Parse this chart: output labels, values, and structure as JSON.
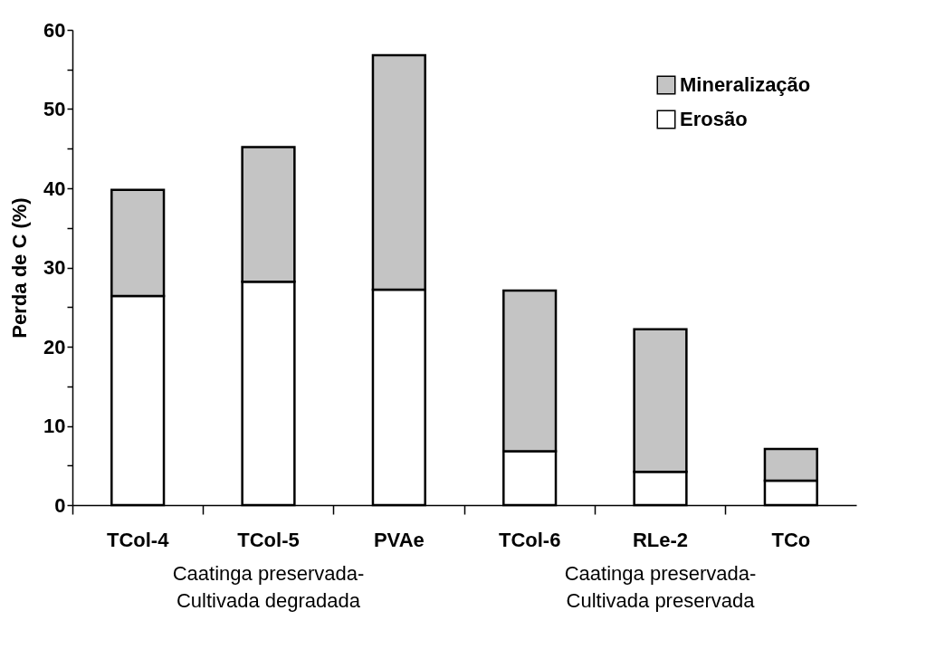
{
  "chart_data": {
    "type": "bar",
    "stacked": true,
    "ylabel": "Perda de C (%)",
    "categories": [
      "TCol-4",
      "TCol-5",
      "PVAe",
      "TCol-6",
      "RLe-2",
      "TCo"
    ],
    "series": [
      {
        "name": "Erosão",
        "color": "#ffffff",
        "values": [
          26.4,
          28.2,
          27.2,
          6.8,
          4.2,
          3.1
        ]
      },
      {
        "name": "Mineralização",
        "color": "#c4c4c4",
        "values": [
          13.4,
          17.0,
          29.6,
          20.3,
          18.0,
          4.0
        ]
      }
    ],
    "ylim": [
      0,
      60
    ],
    "yticks": [
      0,
      {
        "value": 5,
        "label": null
      },
      10,
      {
        "value": 15,
        "label": null
      },
      20,
      {
        "value": 25,
        "label": null
      },
      30,
      {
        "value": 35,
        "label": null
      },
      40,
      {
        "value": 45,
        "label": null
      },
      50,
      {
        "value": 55,
        "label": null
      },
      60
    ],
    "grid": false,
    "legend": "top right",
    "annotations": [
      "Caatinga preservada-\nCultivada degradada",
      "Caatinga preservada-\nCultivada preservada"
    ]
  }
}
